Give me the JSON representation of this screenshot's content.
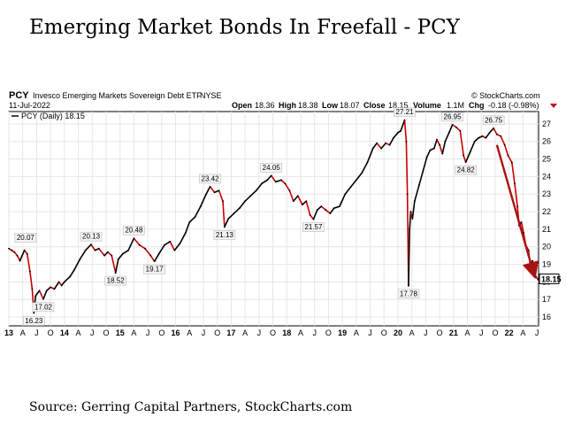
{
  "title": "Emerging Market Bonds In Freefall - PCY",
  "source": "Source: Gerring Capital Partners, StockCharts.com",
  "header": {
    "symbol": "PCY",
    "name": "Invesco Emerging Markets Sovereign Debt ETF",
    "exchange": "NYSE",
    "credit": "© StockCharts.com",
    "date": "11-Jul-2022",
    "open_label": "Open",
    "open": "18.36",
    "high_label": "High",
    "high": "18.38",
    "low_label": "Low",
    "low": "18.07",
    "close_label": "Close",
    "close": "18.15",
    "volume_label": "Volume",
    "volume": "1.1M",
    "chg_label": "Chg",
    "chg": "-0.18 (-0.98%)",
    "legend": "PCY (Daily) 18.15",
    "last_price": "18.15"
  },
  "colors": {
    "price": "#000000",
    "down": "#cc0000",
    "arrow": "#aa1111",
    "last_box": "#000000"
  },
  "chart_data": {
    "type": "line",
    "title": "PCY Invesco Emerging Markets Sovereign Debt ETF",
    "xlabel": "",
    "ylabel": "",
    "xlim": [
      2013.0,
      2022.53
    ],
    "ylim": [
      15.5,
      27.7
    ],
    "yticks": [
      16,
      17,
      18,
      19,
      20,
      21,
      22,
      23,
      24,
      25,
      26,
      27
    ],
    "xticks": [
      {
        "label": "13",
        "x": 2013.0
      },
      {
        "label": "A",
        "x": 2013.25
      },
      {
        "label": "J",
        "x": 2013.5
      },
      {
        "label": "O",
        "x": 2013.75
      },
      {
        "label": "14",
        "x": 2014.0
      },
      {
        "label": "A",
        "x": 2014.25
      },
      {
        "label": "J",
        "x": 2014.5
      },
      {
        "label": "O",
        "x": 2014.75
      },
      {
        "label": "15",
        "x": 2015.0
      },
      {
        "label": "A",
        "x": 2015.25
      },
      {
        "label": "J",
        "x": 2015.5
      },
      {
        "label": "O",
        "x": 2015.75
      },
      {
        "label": "16",
        "x": 2016.0
      },
      {
        "label": "A",
        "x": 2016.25
      },
      {
        "label": "J",
        "x": 2016.5
      },
      {
        "label": "O",
        "x": 2016.75
      },
      {
        "label": "17",
        "x": 2017.0
      },
      {
        "label": "A",
        "x": 2017.25
      },
      {
        "label": "J",
        "x": 2017.5
      },
      {
        "label": "O",
        "x": 2017.75
      },
      {
        "label": "18",
        "x": 2018.0
      },
      {
        "label": "A",
        "x": 2018.25
      },
      {
        "label": "J",
        "x": 2018.5
      },
      {
        "label": "O",
        "x": 2018.75
      },
      {
        "label": "19",
        "x": 2019.0
      },
      {
        "label": "A",
        "x": 2019.25
      },
      {
        "label": "J",
        "x": 2019.5
      },
      {
        "label": "O",
        "x": 2019.75
      },
      {
        "label": "20",
        "x": 2020.0
      },
      {
        "label": "A",
        "x": 2020.25
      },
      {
        "label": "J",
        "x": 2020.5
      },
      {
        "label": "O",
        "x": 2020.75
      },
      {
        "label": "21",
        "x": 2021.0
      },
      {
        "label": "A",
        "x": 2021.25
      },
      {
        "label": "J",
        "x": 2021.5
      },
      {
        "label": "O",
        "x": 2021.75
      },
      {
        "label": "22",
        "x": 2022.0
      },
      {
        "label": "A",
        "x": 2022.25
      },
      {
        "label": "J",
        "x": 2022.5
      }
    ],
    "series": [
      {
        "name": "PCY (Daily)",
        "points": [
          [
            2013.0,
            19.9
          ],
          [
            2013.05,
            19.8
          ],
          [
            2013.1,
            19.7
          ],
          [
            2013.15,
            19.5
          ],
          [
            2013.2,
            19.2
          ],
          [
            2013.28,
            19.8
          ],
          [
            2013.33,
            19.6
          ],
          [
            2013.38,
            18.6
          ],
          [
            2013.42,
            17.6
          ],
          [
            2013.45,
            16.23
          ],
          [
            2013.48,
            17.2
          ],
          [
            2013.55,
            17.5
          ],
          [
            2013.62,
            17.02
          ],
          [
            2013.68,
            17.5
          ],
          [
            2013.75,
            17.7
          ],
          [
            2013.82,
            17.6
          ],
          [
            2013.9,
            18.0
          ],
          [
            2013.95,
            17.8
          ],
          [
            2014.0,
            18.0
          ],
          [
            2014.1,
            18.3
          ],
          [
            2014.18,
            18.7
          ],
          [
            2014.28,
            19.3
          ],
          [
            2014.38,
            19.8
          ],
          [
            2014.48,
            20.13
          ],
          [
            2014.55,
            19.8
          ],
          [
            2014.62,
            19.9
          ],
          [
            2014.72,
            19.5
          ],
          [
            2014.78,
            19.7
          ],
          [
            2014.85,
            19.5
          ],
          [
            2014.92,
            18.52
          ],
          [
            2014.97,
            19.3
          ],
          [
            2015.05,
            19.6
          ],
          [
            2015.15,
            19.8
          ],
          [
            2015.25,
            20.48
          ],
          [
            2015.35,
            20.1
          ],
          [
            2015.45,
            19.9
          ],
          [
            2015.55,
            19.5
          ],
          [
            2015.62,
            19.17
          ],
          [
            2015.7,
            19.6
          ],
          [
            2015.8,
            20.1
          ],
          [
            2015.9,
            20.3
          ],
          [
            2015.98,
            19.8
          ],
          [
            2016.08,
            20.2
          ],
          [
            2016.18,
            20.8
          ],
          [
            2016.25,
            21.4
          ],
          [
            2016.35,
            21.7
          ],
          [
            2016.45,
            22.3
          ],
          [
            2016.55,
            23.0
          ],
          [
            2016.62,
            23.42
          ],
          [
            2016.7,
            23.1
          ],
          [
            2016.78,
            23.2
          ],
          [
            2016.85,
            22.6
          ],
          [
            2016.88,
            21.13
          ],
          [
            2016.95,
            21.6
          ],
          [
            2017.05,
            21.9
          ],
          [
            2017.15,
            22.2
          ],
          [
            2017.25,
            22.6
          ],
          [
            2017.35,
            22.9
          ],
          [
            2017.45,
            23.2
          ],
          [
            2017.55,
            23.6
          ],
          [
            2017.65,
            23.8
          ],
          [
            2017.72,
            24.05
          ],
          [
            2017.8,
            23.7
          ],
          [
            2017.9,
            23.8
          ],
          [
            2017.97,
            23.6
          ],
          [
            2018.05,
            23.2
          ],
          [
            2018.12,
            22.6
          ],
          [
            2018.2,
            22.9
          ],
          [
            2018.28,
            22.4
          ],
          [
            2018.35,
            22.6
          ],
          [
            2018.42,
            21.8
          ],
          [
            2018.48,
            21.57
          ],
          [
            2018.55,
            22.1
          ],
          [
            2018.62,
            22.3
          ],
          [
            2018.7,
            22.1
          ],
          [
            2018.78,
            21.9
          ],
          [
            2018.85,
            22.2
          ],
          [
            2018.95,
            22.3
          ],
          [
            2019.05,
            23.0
          ],
          [
            2019.15,
            23.4
          ],
          [
            2019.25,
            23.8
          ],
          [
            2019.35,
            24.2
          ],
          [
            2019.45,
            24.8
          ],
          [
            2019.55,
            25.6
          ],
          [
            2019.62,
            25.9
          ],
          [
            2019.7,
            25.6
          ],
          [
            2019.78,
            25.9
          ],
          [
            2019.85,
            25.8
          ],
          [
            2019.92,
            26.2
          ],
          [
            2020.0,
            26.5
          ],
          [
            2020.05,
            26.6
          ],
          [
            2020.12,
            27.21
          ],
          [
            2020.15,
            26.0
          ],
          [
            2020.17,
            23.0
          ],
          [
            2020.19,
            17.78
          ],
          [
            2020.21,
            21.0
          ],
          [
            2020.23,
            22.0
          ],
          [
            2020.26,
            21.6
          ],
          [
            2020.3,
            22.6
          ],
          [
            2020.38,
            23.5
          ],
          [
            2020.45,
            24.3
          ],
          [
            2020.52,
            25.1
          ],
          [
            2020.58,
            25.5
          ],
          [
            2020.65,
            25.6
          ],
          [
            2020.7,
            26.1
          ],
          [
            2020.75,
            25.8
          ],
          [
            2020.8,
            25.3
          ],
          [
            2020.85,
            26.0
          ],
          [
            2020.92,
            26.5
          ],
          [
            2020.98,
            26.95
          ],
          [
            2021.05,
            26.8
          ],
          [
            2021.12,
            26.6
          ],
          [
            2021.18,
            25.2
          ],
          [
            2021.22,
            24.82
          ],
          [
            2021.3,
            25.4
          ],
          [
            2021.38,
            26.0
          ],
          [
            2021.45,
            26.2
          ],
          [
            2021.52,
            26.3
          ],
          [
            2021.58,
            26.2
          ],
          [
            2021.65,
            26.5
          ],
          [
            2021.72,
            26.75
          ],
          [
            2021.78,
            26.4
          ],
          [
            2021.85,
            26.3
          ],
          [
            2021.92,
            25.8
          ],
          [
            2021.98,
            25.2
          ],
          [
            2022.05,
            24.8
          ],
          [
            2022.1,
            23.6
          ],
          [
            2022.15,
            22.3
          ],
          [
            2022.18,
            21.2
          ],
          [
            2022.22,
            21.4
          ],
          [
            2022.26,
            20.8
          ],
          [
            2022.3,
            20.1
          ],
          [
            2022.35,
            19.8
          ],
          [
            2022.38,
            18.9
          ],
          [
            2022.42,
            19.2
          ],
          [
            2022.45,
            18.8
          ],
          [
            2022.48,
            18.3
          ],
          [
            2022.52,
            18.15
          ]
        ]
      }
    ],
    "annotations": [
      {
        "label": "20.07",
        "x": 2013.3,
        "y": 20.07
      },
      {
        "label": "16.23",
        "x": 2013.45,
        "y": 16.23
      },
      {
        "label": "17.02",
        "x": 2013.62,
        "y": 17.02
      },
      {
        "label": "20.13",
        "x": 2014.48,
        "y": 20.13
      },
      {
        "label": "18.52",
        "x": 2014.92,
        "y": 18.52
      },
      {
        "label": "20.48",
        "x": 2015.25,
        "y": 20.48
      },
      {
        "label": "19.17",
        "x": 2015.62,
        "y": 19.17
      },
      {
        "label": "23.42",
        "x": 2016.62,
        "y": 23.42
      },
      {
        "label": "21.13",
        "x": 2016.88,
        "y": 21.13
      },
      {
        "label": "24.05",
        "x": 2017.72,
        "y": 24.05
      },
      {
        "label": "21.57",
        "x": 2018.48,
        "y": 21.57
      },
      {
        "label": "27.21",
        "x": 2020.12,
        "y": 27.21
      },
      {
        "label": "17.78",
        "x": 2020.19,
        "y": 17.78
      },
      {
        "label": "26.95",
        "x": 2020.98,
        "y": 26.95
      },
      {
        "label": "24.82",
        "x": 2021.22,
        "y": 24.82
      },
      {
        "label": "26.75",
        "x": 2021.72,
        "y": 26.75
      }
    ],
    "trend_arrow": {
      "from": [
        2021.78,
        25.8
      ],
      "to": [
        2022.45,
        18.4
      ]
    }
  }
}
